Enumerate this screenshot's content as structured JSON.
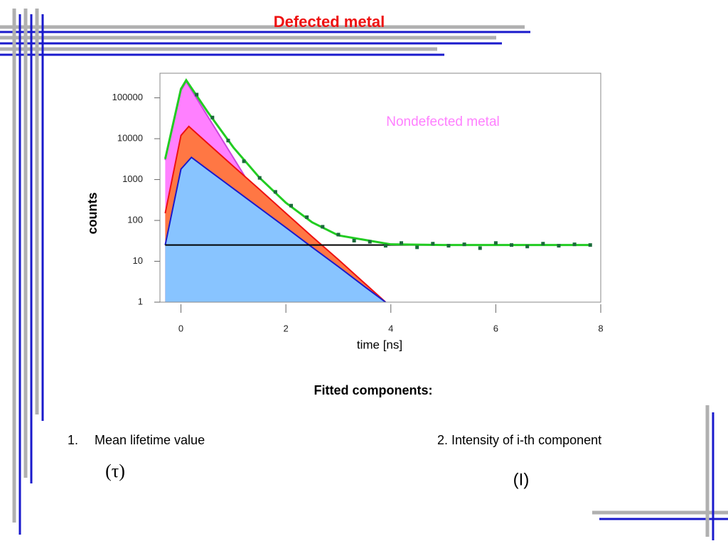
{
  "title": "Defected metal",
  "chart_data": {
    "type": "line",
    "y_label": "counts",
    "x_label": "time [ns]",
    "annotation": "Nondefected metal",
    "xlim": [
      -0.4,
      8
    ],
    "xticks": [
      0,
      2,
      4,
      6,
      8
    ],
    "ylim": [
      1,
      400000
    ],
    "yticks": [
      1,
      10,
      100,
      1000,
      10000,
      100000
    ],
    "log_y": true,
    "series": [
      {
        "color": "#ff80ff",
        "fill": true,
        "x": [
          -0.3,
          0,
          0.1,
          0.5,
          1,
          1.5,
          2,
          2.5,
          2.7
        ],
        "values": [
          3000,
          150000,
          250000,
          37000,
          3400,
          310,
          29,
          2.7,
          1
        ],
        "line_color": "#cc44dd"
      },
      {
        "color": "#ff7744",
        "fill": true,
        "x": [
          -0.3,
          0,
          0.15,
          0.5,
          1,
          1.5,
          2,
          2.5,
          3,
          3.5,
          3.9
        ],
        "values": [
          150,
          12000,
          20000,
          7900,
          2100,
          570,
          150,
          40,
          11,
          2.9,
          1
        ],
        "line_color": "#ee1111"
      },
      {
        "color": "#88c4ff",
        "fill": true,
        "x": [
          -0.3,
          0,
          0.2,
          0.5,
          1,
          1.5,
          2,
          2.5,
          3,
          3.5,
          3.9
        ],
        "values": [
          25,
          1800,
          3500,
          1800,
          600,
          200,
          67,
          22,
          7.4,
          2.4,
          1
        ],
        "line_color": "#1a1acc"
      },
      {
        "color": "#000000",
        "x": [
          -0.3,
          7.8
        ],
        "values": [
          25,
          25
        ]
      },
      {
        "color": "#22cc22",
        "x": [
          -0.3,
          0,
          0.1,
          0.5,
          1,
          1.5,
          2,
          2.5,
          3,
          4,
          5,
          6,
          7.8
        ],
        "values": [
          3200,
          165000,
          270000,
          47000,
          6100,
          1100,
          270,
          90,
          43,
          26,
          25,
          25,
          25
        ]
      }
    ],
    "points": {
      "color": "#1a6b3a",
      "x": [
        0.3,
        0.6,
        0.9,
        1.2,
        1.5,
        1.8,
        2.1,
        2.4,
        2.7,
        3.0,
        3.3,
        3.6,
        3.9,
        4.2,
        4.5,
        4.8,
        5.1,
        5.4,
        5.7,
        6.0,
        6.3,
        6.6,
        6.9,
        7.2,
        7.5,
        7.8
      ],
      "values": [
        120000,
        33000,
        9000,
        2800,
        1100,
        500,
        230,
        120,
        70,
        45,
        32,
        30,
        24,
        28,
        22,
        27,
        24,
        26,
        21,
        28,
        25,
        23,
        27,
        24,
        26,
        25
      ]
    }
  },
  "fitted_heading": "Fitted components:",
  "items": [
    {
      "number": "1.",
      "text": "Mean lifetime value",
      "symbol": "(τ)"
    },
    {
      "text": "2. Intensity of i-th component",
      "symbol": "(I)"
    }
  ]
}
